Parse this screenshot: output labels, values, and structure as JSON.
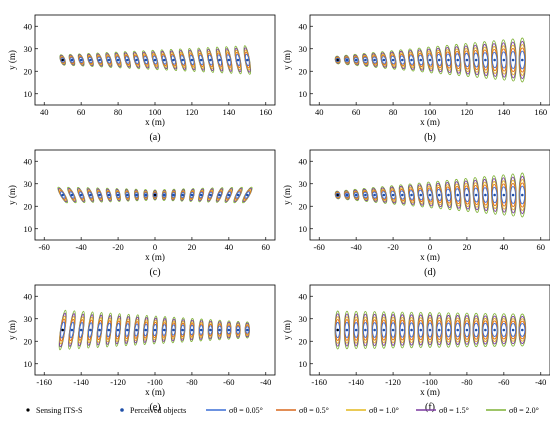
{
  "chart_data": [
    {
      "panel": "(a)",
      "type": "scatter",
      "xlabel": "x (m)",
      "ylabel": "y (m)",
      "xlim": [
        35,
        165
      ],
      "ylim": [
        5,
        45
      ],
      "xticks": [
        40,
        60,
        80,
        100,
        120,
        140,
        160
      ],
      "yticks": [
        10,
        20,
        30,
        40
      ],
      "sensor": {
        "x": 50,
        "y": 25
      },
      "objects": {
        "x_start": 50,
        "x_end": 150,
        "count": 21,
        "y": 25
      },
      "ellipse_growth": "along-track-in-y"
    },
    {
      "panel": "(b)",
      "type": "scatter",
      "xlabel": "x (m)",
      "ylabel": "y (m)",
      "xlim": [
        35,
        165
      ],
      "ylim": [
        5,
        45
      ],
      "xticks": [
        40,
        60,
        80,
        100,
        120,
        140,
        160
      ],
      "yticks": [
        10,
        20,
        30,
        40
      ],
      "sensor": {
        "x": 50,
        "y": 25
      },
      "objects": {
        "x_start": 50,
        "x_end": 150,
        "count": 21,
        "y": 25
      },
      "ellipse_growth": "cross-track"
    },
    {
      "panel": "(c)",
      "type": "scatter",
      "xlabel": "x (m)",
      "ylabel": "y (m)",
      "xlim": [
        -65,
        65
      ],
      "ylim": [
        5,
        45
      ],
      "xticks": [
        -60,
        -40,
        -20,
        0,
        20,
        40,
        60
      ],
      "yticks": [
        10,
        20,
        30,
        40
      ],
      "sensor": {
        "x": 0,
        "y": 25
      },
      "objects": {
        "x_start": -50,
        "x_end": 50,
        "count": 21,
        "y": 25
      },
      "ellipse_growth": "along-track-in-y"
    },
    {
      "panel": "(d)",
      "type": "scatter",
      "xlabel": "x (m)",
      "ylabel": "y (m)",
      "xlim": [
        -65,
        65
      ],
      "ylim": [
        5,
        45
      ],
      "xticks": [
        -60,
        -40,
        -20,
        0,
        20,
        40,
        60
      ],
      "yticks": [
        10,
        20,
        30,
        40
      ],
      "sensor": {
        "x": -50,
        "y": 25
      },
      "objects": {
        "x_start": -50,
        "x_end": 50,
        "count": 21,
        "y": 25
      },
      "ellipse_growth": "cross-track"
    },
    {
      "panel": "(e)",
      "type": "scatter",
      "xlabel": "x (m)",
      "ylabel": "y (m)",
      "xlim": [
        -165,
        -35
      ],
      "ylim": [
        5,
        45
      ],
      "xticks": [
        -160,
        -140,
        -120,
        -100,
        -80,
        -60,
        -40
      ],
      "yticks": [
        10,
        20,
        30,
        40
      ],
      "sensor": {
        "x": -150,
        "y": 25
      },
      "objects": {
        "x_start": -150,
        "x_end": -50,
        "count": 21,
        "y": 25
      },
      "ellipse_growth": "shrinking-in-y"
    },
    {
      "panel": "(f)",
      "type": "scatter",
      "xlabel": "x (m)",
      "ylabel": "y (m)",
      "xlim": [
        -165,
        -35
      ],
      "ylim": [
        5,
        45
      ],
      "xticks": [
        -160,
        -140,
        -120,
        -100,
        -80,
        -60,
        -40
      ],
      "yticks": [
        10,
        20,
        30,
        40
      ],
      "sensor": {
        "x": -150,
        "y": 25
      },
      "objects": {
        "x_start": -150,
        "x_end": -50,
        "count": 21,
        "y": 25
      },
      "ellipse_growth": "vertical-constant"
    }
  ],
  "legend": {
    "sensing": "Sensing ITS-S",
    "perceived": "Perceived objects",
    "series": [
      {
        "label": "σθ = 0.05°",
        "color": "#3b6fd6"
      },
      {
        "label": "σθ = 0.5°",
        "color": "#d9681e"
      },
      {
        "label": "σθ = 1.0°",
        "color": "#e3b81e"
      },
      {
        "label": "σθ = 1.5°",
        "color": "#7b3aa0"
      },
      {
        "label": "σθ = 2.0°",
        "color": "#7fb236"
      }
    ]
  }
}
